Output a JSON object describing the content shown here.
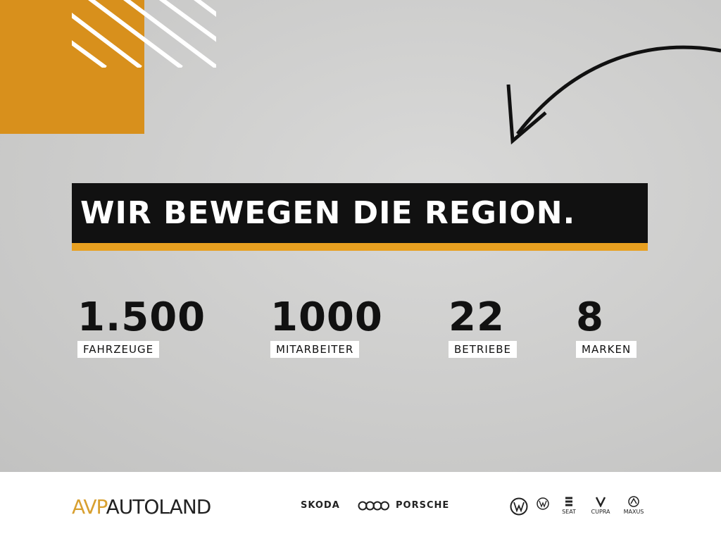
{
  "headline": "WIR BEWEGEN DIE REGION.",
  "stats": [
    {
      "value": "1.500",
      "label": "FAHRZEUGE"
    },
    {
      "value": "1000",
      "label": "MITARBEITER"
    },
    {
      "value": "22",
      "label": "BETRIEBE"
    },
    {
      "value": "8",
      "label": "MARKEN"
    }
  ],
  "logo": {
    "part1": "AVP",
    "part2": "AUTOLAND"
  },
  "brands": [
    "SKODA",
    "PORSCHE",
    "SEAT",
    "CUPRA",
    "MAXUS"
  ],
  "colors": {
    "orange": "#d8901c",
    "accent": "#e8a020",
    "black": "#111111"
  }
}
